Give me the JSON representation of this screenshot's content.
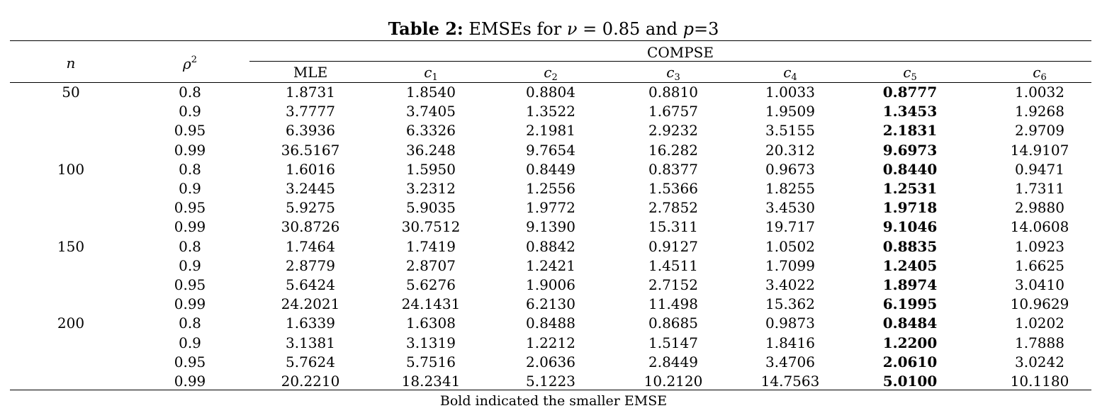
{
  "caption": {
    "label": "Table 2:",
    "text_before_nu": " EMSEs for ",
    "nu_symbol": "ν",
    "nu_value": " = 0.85 and ",
    "p_symbol": "p",
    "p_value": "=3"
  },
  "header": {
    "n_label": "n",
    "rho_label": "ρ",
    "rho_exponent": "2",
    "group_label": "COMPSE",
    "columns": [
      {
        "base": "MLE",
        "sub": ""
      },
      {
        "base": "c",
        "sub": "1"
      },
      {
        "base": "c",
        "sub": "2"
      },
      {
        "base": "c",
        "sub": "3"
      },
      {
        "base": "c",
        "sub": "4"
      },
      {
        "base": "c",
        "sub": "5"
      },
      {
        "base": "c",
        "sub": "6"
      }
    ]
  },
  "rows": [
    {
      "n": "50",
      "rho2": "0.8",
      "values": [
        "1.8731",
        "1.8540",
        "0.8804",
        "0.8810",
        "1.0033",
        "0.8777",
        "1.0032"
      ]
    },
    {
      "n": "",
      "rho2": "0.9",
      "values": [
        "3.7777",
        "3.7405",
        "1.3522",
        "1.6757",
        "1.9509",
        "1.3453",
        "1.9268"
      ]
    },
    {
      "n": "",
      "rho2": "0.95",
      "values": [
        "6.3936",
        "6.3326",
        "2.1981",
        "2.9232",
        "3.5155",
        "2.1831",
        "2.9709"
      ]
    },
    {
      "n": "",
      "rho2": "0.99",
      "values": [
        "36.5167",
        "36.248",
        "9.7654",
        "16.282",
        "20.312",
        "9.6973",
        "14.9107"
      ]
    },
    {
      "n": "100",
      "rho2": "0.8",
      "values": [
        "1.6016",
        "1.5950",
        "0.8449",
        "0.8377",
        "0.9673",
        "0.8440",
        "0.9471"
      ]
    },
    {
      "n": "",
      "rho2": "0.9",
      "values": [
        "3.2445",
        "3.2312",
        "1.2556",
        "1.5366",
        "1.8255",
        "1.2531",
        "1.7311"
      ]
    },
    {
      "n": "",
      "rho2": "0.95",
      "values": [
        "5.9275",
        "5.9035",
        "1.9772",
        "2.7852",
        "3.4530",
        "1.9718",
        "2.9880"
      ]
    },
    {
      "n": "",
      "rho2": "0.99",
      "values": [
        "30.8726",
        "30.7512",
        "9.1390",
        "15.311",
        "19.717",
        "9.1046",
        "14.0608"
      ]
    },
    {
      "n": "150",
      "rho2": "0.8",
      "values": [
        "1.7464",
        "1.7419",
        "0.8842",
        "0.9127",
        "1.0502",
        "0.8835",
        "1.0923"
      ]
    },
    {
      "n": "",
      "rho2": "0.9",
      "values": [
        "2.8779",
        "2.8707",
        "1.2421",
        "1.4511",
        "1.7099",
        "1.2405",
        "1.6625"
      ]
    },
    {
      "n": "",
      "rho2": "0.95",
      "values": [
        "5.6424",
        "5.6276",
        "1.9006",
        "2.7152",
        "3.4022",
        "1.8974",
        "3.0410"
      ]
    },
    {
      "n": "",
      "rho2": "0.99",
      "values": [
        "24.2021",
        "24.1431",
        "6.2130",
        "11.498",
        "15.362",
        "6.1995",
        "10.9629"
      ]
    },
    {
      "n": "200",
      "rho2": "0.8",
      "values": [
        "1.6339",
        "1.6308",
        "0.8488",
        "0.8685",
        "0.9873",
        "0.8484",
        "1.0202"
      ]
    },
    {
      "n": "",
      "rho2": "0.9",
      "values": [
        "3.1381",
        "3.1319",
        "1.2212",
        "1.5147",
        "1.8416",
        "1.2200",
        "1.7888"
      ]
    },
    {
      "n": "",
      "rho2": "0.95",
      "values": [
        "5.7624",
        "5.7516",
        "2.0636",
        "2.8449",
        "3.4706",
        "2.0610",
        "3.0242"
      ]
    },
    {
      "n": "",
      "rho2": "0.99",
      "values": [
        "20.2210",
        "18.2341",
        "5.1223",
        "10.2120",
        "14.7563",
        "5.0100",
        "10.1180"
      ]
    }
  ],
  "bold_column_index": 5,
  "footnote": "Bold indicated the smaller EMSE"
}
